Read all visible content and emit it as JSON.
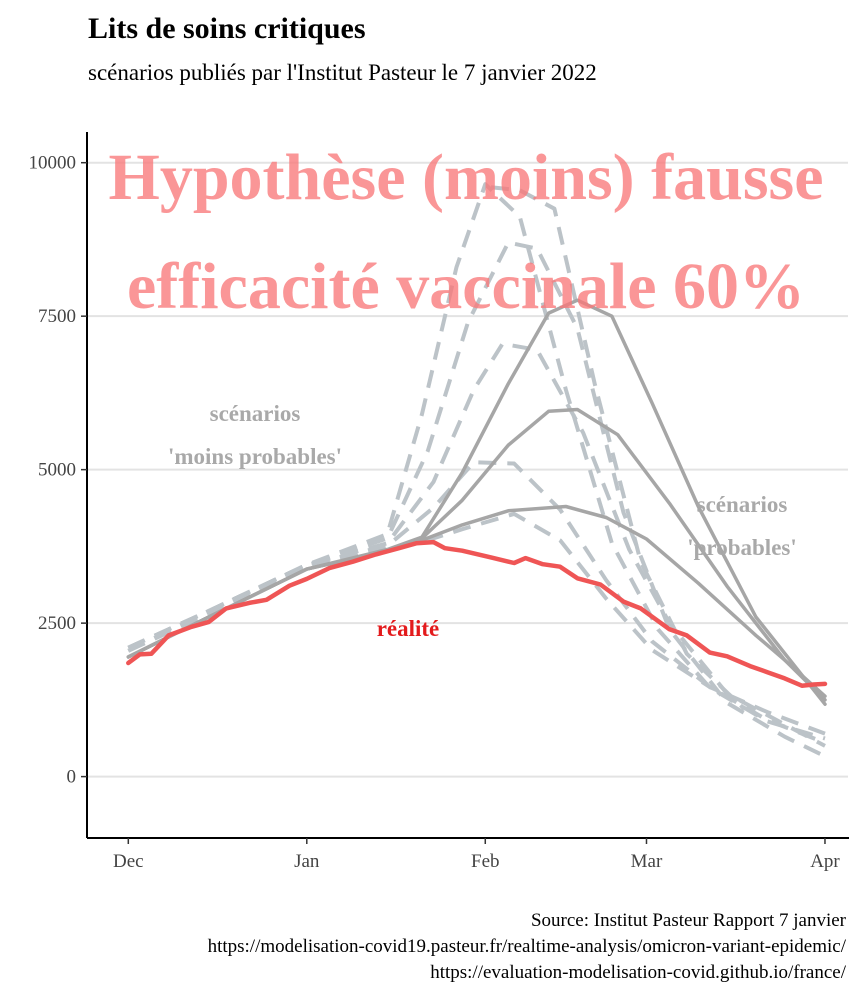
{
  "chart_data": {
    "type": "line",
    "title": "Lits de soins critiques",
    "subtitle": "scénarios publiés par l'Institut Pasteur le 7 janvier 2022",
    "ylim": [
      -1000,
      10500
    ],
    "xlim": [
      "2021-11-24",
      "2022-04-05"
    ],
    "y_ticks": [
      0,
      2500,
      5000,
      7500,
      10000
    ],
    "y_tick_labels": [
      "0",
      "2500",
      "5000",
      "7500",
      "10000"
    ],
    "x_ticks": [
      "2021-12-01",
      "2022-01-01",
      "2022-02-01",
      "2022-03-01",
      "2022-04-01"
    ],
    "x_tick_labels": [
      "Dec",
      "Jan",
      "Feb",
      "Mar",
      "Apr"
    ],
    "grid": "horizontal",
    "overlay_text": [
      "Hypothèse (moins) fausse",
      "efficacité vaccinale 60%"
    ],
    "annotations": {
      "less_probable": [
        "scénarios",
        "'moins probables'"
      ],
      "probable": [
        "scénarios",
        "'probables'"
      ],
      "reality": "réalité"
    },
    "caption": [
      "Source: Institut Pasteur Rapport 7 janvier",
      "https://modelisation-covid19.pasteur.fr/realtime-analysis/omicron-variant-epidemic/",
      "https://evaluation-modelisation-covid.github.io/france/"
    ],
    "colors": {
      "reality": "#ef5555",
      "probable": "#a6a6a6",
      "less_probable": "#bcc3c8",
      "overlay": "#f8787a"
    },
    "series": [
      {
        "group": "reality",
        "style": "solid",
        "points": [
          [
            "2021-12-01",
            1850
          ],
          [
            "2021-12-03",
            1990
          ],
          [
            "2021-12-05",
            2000
          ],
          [
            "2021-12-08",
            2300
          ],
          [
            "2021-12-12",
            2440
          ],
          [
            "2021-12-15",
            2520
          ],
          [
            "2021-12-18",
            2740
          ],
          [
            "2021-12-22",
            2830
          ],
          [
            "2021-12-25",
            2880
          ],
          [
            "2021-12-29",
            3110
          ],
          [
            "2022-01-01",
            3220
          ],
          [
            "2022-01-05",
            3400
          ],
          [
            "2022-01-09",
            3500
          ],
          [
            "2022-01-13",
            3620
          ],
          [
            "2022-01-17",
            3720
          ],
          [
            "2022-01-20",
            3800
          ],
          [
            "2022-01-23",
            3820
          ],
          [
            "2022-01-25",
            3720
          ],
          [
            "2022-01-28",
            3680
          ],
          [
            "2022-02-02",
            3570
          ],
          [
            "2022-02-06",
            3480
          ],
          [
            "2022-02-08",
            3560
          ],
          [
            "2022-02-11",
            3460
          ],
          [
            "2022-02-14",
            3420
          ],
          [
            "2022-02-17",
            3230
          ],
          [
            "2022-02-21",
            3130
          ],
          [
            "2022-02-25",
            2850
          ],
          [
            "2022-02-28",
            2740
          ],
          [
            "2022-03-05",
            2400
          ],
          [
            "2022-03-08",
            2300
          ],
          [
            "2022-03-12",
            2020
          ],
          [
            "2022-03-15",
            1960
          ],
          [
            "2022-03-19",
            1800
          ],
          [
            "2022-03-22",
            1700
          ],
          [
            "2022-03-25",
            1600
          ],
          [
            "2022-03-28",
            1480
          ],
          [
            "2022-03-30",
            1500
          ],
          [
            "2022-04-01",
            1510
          ]
        ]
      },
      {
        "group": "probable",
        "style": "solid",
        "points": [
          [
            "2021-12-01",
            1950
          ],
          [
            "2021-12-15",
            2600
          ],
          [
            "2022-01-01",
            3380
          ],
          [
            "2022-01-15",
            3680
          ],
          [
            "2022-01-21",
            3850
          ],
          [
            "2022-01-28",
            4100
          ],
          [
            "2022-02-05",
            4330
          ],
          [
            "2022-02-15",
            4400
          ],
          [
            "2022-02-22",
            4220
          ],
          [
            "2022-03-01",
            3870
          ],
          [
            "2022-03-10",
            3150
          ],
          [
            "2022-03-20",
            2300
          ],
          [
            "2022-03-25",
            1900
          ],
          [
            "2022-04-01",
            1310
          ]
        ]
      },
      {
        "group": "probable",
        "style": "solid",
        "points": [
          [
            "2021-12-01",
            1950
          ],
          [
            "2021-12-15",
            2600
          ],
          [
            "2022-01-01",
            3380
          ],
          [
            "2022-01-15",
            3680
          ],
          [
            "2022-01-21",
            3880
          ],
          [
            "2022-01-28",
            4500
          ],
          [
            "2022-02-05",
            5400
          ],
          [
            "2022-02-12",
            5950
          ],
          [
            "2022-02-17",
            5980
          ],
          [
            "2022-02-24",
            5570
          ],
          [
            "2022-03-05",
            4450
          ],
          [
            "2022-03-15",
            3100
          ],
          [
            "2022-03-25",
            1900
          ],
          [
            "2022-04-01",
            1250
          ]
        ]
      },
      {
        "group": "probable",
        "style": "solid",
        "points": [
          [
            "2021-12-01",
            1950
          ],
          [
            "2021-12-15",
            2600
          ],
          [
            "2022-01-01",
            3380
          ],
          [
            "2022-01-15",
            3700
          ],
          [
            "2022-01-21",
            3900
          ],
          [
            "2022-01-28",
            4950
          ],
          [
            "2022-02-05",
            6400
          ],
          [
            "2022-02-12",
            7550
          ],
          [
            "2022-02-17",
            7760
          ],
          [
            "2022-02-23",
            7500
          ],
          [
            "2022-03-02",
            6080
          ],
          [
            "2022-03-10",
            4400
          ],
          [
            "2022-03-20",
            2600
          ],
          [
            "2022-04-01",
            1180
          ]
        ]
      },
      {
        "group": "less_probable",
        "style": "dashed",
        "points": [
          [
            "2021-12-01",
            2050
          ],
          [
            "2021-12-15",
            2650
          ],
          [
            "2022-01-01",
            3420
          ],
          [
            "2022-01-15",
            3700
          ],
          [
            "2022-01-21",
            3820
          ],
          [
            "2022-01-28",
            4030
          ],
          [
            "2022-02-06",
            4280
          ],
          [
            "2022-02-14",
            3850
          ],
          [
            "2022-02-22",
            2900
          ],
          [
            "2022-03-02",
            2060
          ],
          [
            "2022-03-12",
            1460
          ],
          [
            "2022-03-22",
            1050
          ],
          [
            "2022-04-01",
            700
          ]
        ]
      },
      {
        "group": "less_probable",
        "style": "dashed",
        "points": [
          [
            "2021-12-01",
            2050
          ],
          [
            "2021-12-15",
            2700
          ],
          [
            "2022-01-01",
            3450
          ],
          [
            "2022-01-15",
            3760
          ],
          [
            "2022-01-23",
            4380
          ],
          [
            "2022-01-30",
            5120
          ],
          [
            "2022-02-06",
            5100
          ],
          [
            "2022-02-14",
            4350
          ],
          [
            "2022-02-22",
            3200
          ],
          [
            "2022-03-02",
            2200
          ],
          [
            "2022-03-12",
            1460
          ],
          [
            "2022-03-22",
            920
          ],
          [
            "2022-04-01",
            550
          ]
        ]
      },
      {
        "group": "less_probable",
        "style": "dashed",
        "points": [
          [
            "2021-12-01",
            2100
          ],
          [
            "2021-12-15",
            2700
          ],
          [
            "2022-01-01",
            3450
          ],
          [
            "2022-01-15",
            3800
          ],
          [
            "2022-01-23",
            4800
          ],
          [
            "2022-01-30",
            6300
          ],
          [
            "2022-02-04",
            7050
          ],
          [
            "2022-02-10",
            6950
          ],
          [
            "2022-02-18",
            5600
          ],
          [
            "2022-02-26",
            3700
          ],
          [
            "2022-03-05",
            2500
          ],
          [
            "2022-03-15",
            1350
          ],
          [
            "2022-03-25",
            850
          ],
          [
            "2022-04-01",
            500
          ]
        ]
      },
      {
        "group": "less_probable",
        "style": "dashed",
        "points": [
          [
            "2021-12-01",
            2100
          ],
          [
            "2021-12-15",
            2700
          ],
          [
            "2022-01-01",
            3450
          ],
          [
            "2022-01-15",
            3880
          ],
          [
            "2022-01-22",
            5300
          ],
          [
            "2022-01-29",
            7400
          ],
          [
            "2022-02-05",
            8700
          ],
          [
            "2022-02-10",
            8600
          ],
          [
            "2022-02-17",
            7300
          ],
          [
            "2022-02-25",
            4300
          ],
          [
            "2022-03-05",
            2400
          ],
          [
            "2022-03-15",
            1200
          ],
          [
            "2022-03-25",
            650
          ],
          [
            "2022-04-01",
            330
          ]
        ]
      },
      {
        "group": "less_probable",
        "style": "dashed",
        "points": [
          [
            "2021-12-01",
            2100
          ],
          [
            "2021-12-15",
            2700
          ],
          [
            "2022-01-01",
            3450
          ],
          [
            "2022-01-15",
            3950
          ],
          [
            "2022-01-21",
            5900
          ],
          [
            "2022-01-27",
            8300
          ],
          [
            "2022-02-01",
            9650
          ],
          [
            "2022-02-07",
            9120
          ],
          [
            "2022-02-15",
            6300
          ],
          [
            "2022-02-23",
            3800
          ],
          [
            "2022-03-03",
            2400
          ],
          [
            "2022-03-12",
            1450
          ],
          [
            "2022-03-22",
            900
          ],
          [
            "2022-04-01",
            620
          ]
        ]
      },
      {
        "group": "less_probable",
        "style": "dashed",
        "points": [
          [
            "2022-02-02",
            9600
          ],
          [
            "2022-02-07",
            9550
          ],
          [
            "2022-02-13",
            9250
          ],
          [
            "2022-02-20",
            6400
          ],
          [
            "2022-02-28",
            3500
          ],
          [
            "2022-03-08",
            2000
          ],
          [
            "2022-03-18",
            1100
          ]
        ]
      }
    ]
  }
}
